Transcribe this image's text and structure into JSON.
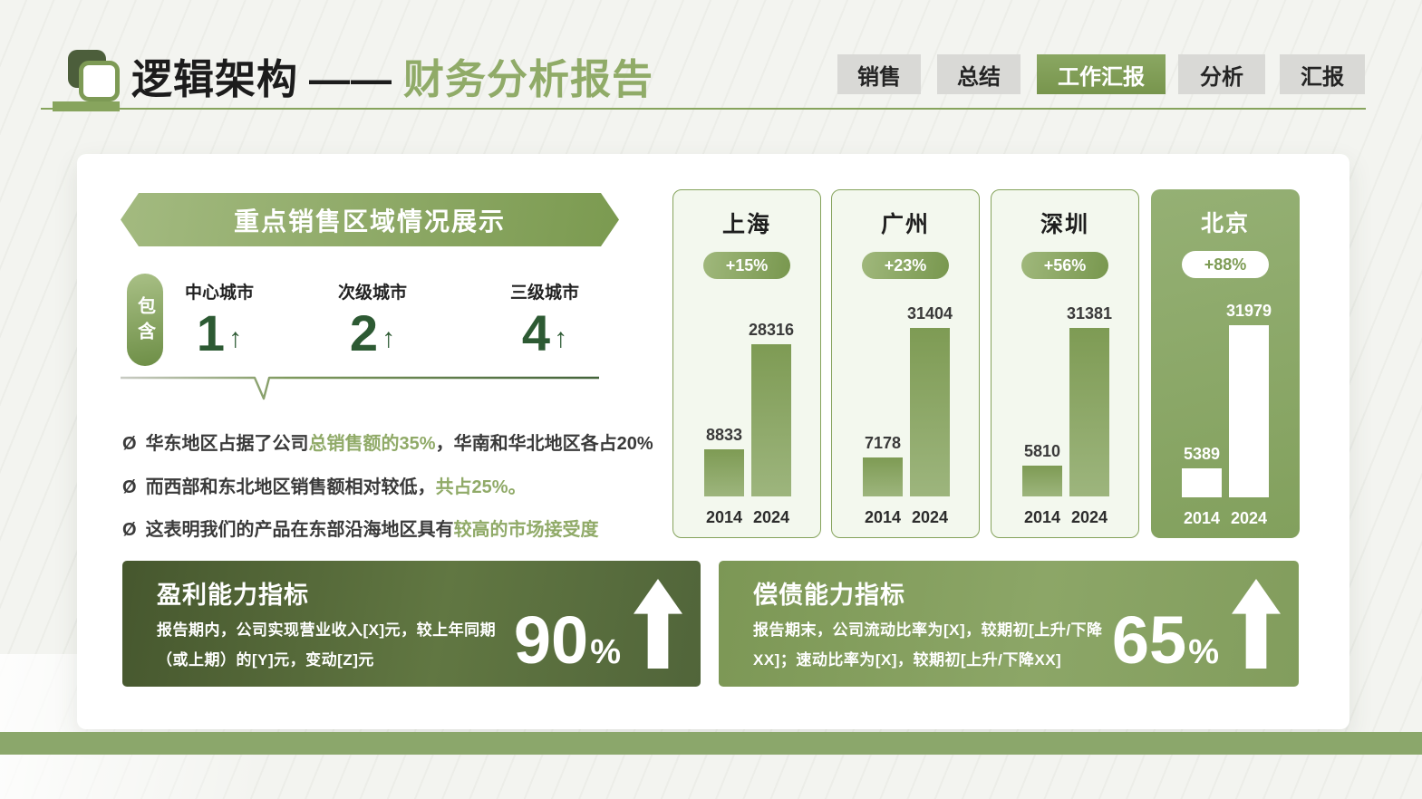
{
  "header": {
    "logo_icon": "overlapping-rounded-squares",
    "title": "逻辑架构",
    "separator": "——",
    "subtitle": "财务分析报告",
    "tabs": [
      {
        "label": "销售",
        "active": false
      },
      {
        "label": "总结",
        "active": false
      },
      {
        "label": "工作汇报",
        "active": true
      },
      {
        "label": "分析",
        "active": false
      },
      {
        "label": "汇报",
        "active": false
      }
    ]
  },
  "region_section": {
    "banner_title": "重点销售区域情况展示",
    "include_badge": "包含",
    "stats": [
      {
        "label": "中心城市",
        "value": "1",
        "arrow": "↑"
      },
      {
        "label": "次级城市",
        "value": "2",
        "arrow": "↑"
      },
      {
        "label": "三级城市",
        "value": "4",
        "arrow": "↑"
      }
    ],
    "bullet_prefix": "Ø",
    "bullets": [
      {
        "pre": "华东地区占据了公司",
        "hl": "总销售额的35%",
        "post": "，华南和华北地区各占20%"
      },
      {
        "pre": "而西部和东北地区销售额相对较低，",
        "hl": "共占25%。",
        "post": ""
      },
      {
        "pre": "这表明我们的产品在东部沿海地区具有",
        "hl": "较高的市场接受度",
        "post": ""
      }
    ]
  },
  "chart_data": {
    "type": "bar",
    "categories": [
      "2014",
      "2024"
    ],
    "ylim": [
      0,
      32000
    ],
    "cities": [
      {
        "name": "上海",
        "growth": "+15%",
        "values": [
          8833,
          28316
        ],
        "inverted": false
      },
      {
        "name": "广州",
        "growth": "+23%",
        "values": [
          7178,
          31404
        ],
        "inverted": false
      },
      {
        "name": "深圳",
        "growth": "+56%",
        "values": [
          5810,
          31381
        ],
        "inverted": false
      },
      {
        "name": "北京",
        "growth": "+88%",
        "values": [
          5389,
          31979
        ],
        "inverted": true
      }
    ]
  },
  "kpi_panels": [
    {
      "title": "盈利能力指标",
      "line1": "报告期内，公司实现营业收入[X]元，较上年同期",
      "line2": "（或上期）的[Y]元，变动[Z]元",
      "value": "90",
      "unit": "%",
      "trend_icon": "up-arrow"
    },
    {
      "title": "偿债能力指标",
      "line1": "报告期末，公司流动比率为[X]，较期初[上升/下降",
      "line2": "XX]；速动比率为[X]，较期初[上升/下降XX]",
      "value": "65",
      "unit": "%",
      "trend_icon": "up-arrow"
    }
  ],
  "colors": {
    "accent_green": "#7d9b52",
    "banner_green": "#8aa663",
    "dark_number_green": "#2d5a33",
    "highlight_text_green": "#90aa68",
    "kpi_dark_panel": "#51653a",
    "kpi_light_panel": "#849f5e",
    "tab_gray": "#d9d9d6",
    "footer_green": "#8ba76b",
    "card_bg": "#ffffff",
    "chart_card_bg": "#f3f8ee"
  }
}
